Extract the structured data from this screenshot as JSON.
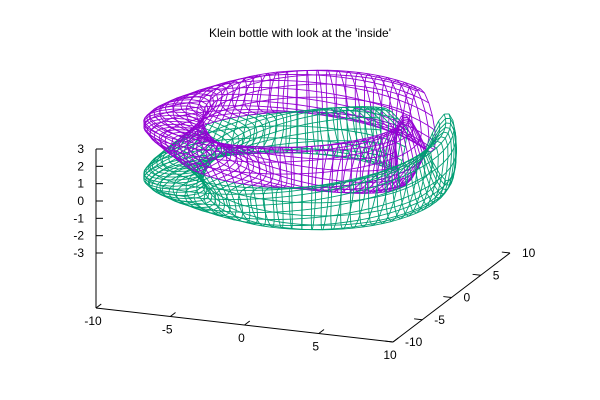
{
  "chart_data": {
    "type": "surface3d",
    "title": "Klein bottle with look at the 'inside'",
    "x_axis": {
      "range": [
        -10,
        10
      ],
      "ticks": [
        "-10",
        "-5",
        "0",
        "5",
        "10"
      ]
    },
    "y_axis": {
      "range": [
        -10,
        10
      ],
      "ticks": [
        "-10",
        "-5",
        "0",
        "5",
        "10"
      ]
    },
    "z_axis": {
      "range": [
        -3,
        3
      ],
      "ticks": [
        "-3",
        "-2",
        "-1",
        "0",
        "1",
        "2",
        "3"
      ]
    },
    "grid": false,
    "surface": {
      "shape": "klein bottle (figure-8 immersion, cut open)",
      "outer_color": "#9400d3",
      "inner_color": "#009e73"
    }
  }
}
